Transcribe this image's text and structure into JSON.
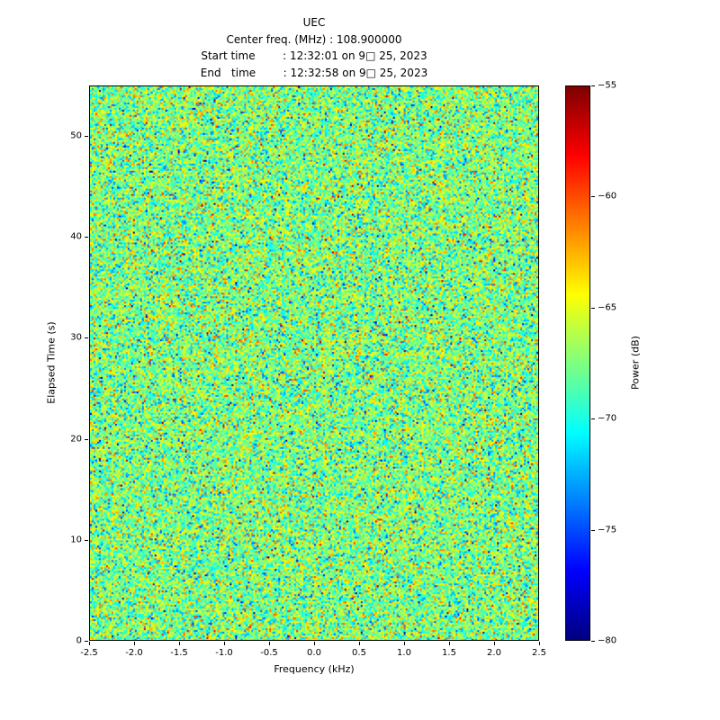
{
  "header": {
    "title": "UEC",
    "center_freq_line": "Center freq. (MHz) : 108.900000",
    "start_time_line": "Start time        : 12:32:01 on 9□ 25, 2023",
    "end_time_line": "End   time        : 12:32:58 on 9□ 25, 2023"
  },
  "chart_data": {
    "type": "heatmap",
    "title": "UEC",
    "subtitle_lines": [
      "Center freq. (MHz) : 108.900000",
      "Start time        : 12:32:01 on 9□ 25, 2023",
      "End   time        : 12:32:58 on 9□ 25, 2023"
    ],
    "xlabel": "Frequency (kHz)",
    "ylabel": "Elapsed Time (s)",
    "xlim": [
      -2.5,
      2.5
    ],
    "ylim": [
      0,
      55
    ],
    "xtick_values": [
      -2.5,
      -2.0,
      -1.5,
      -1.0,
      -0.5,
      0.0,
      0.5,
      1.0,
      1.5,
      2.0,
      2.5
    ],
    "xtick_labels": [
      "-2.5",
      "-2.0",
      "-1.5",
      "-1.0",
      "-0.5",
      "0.0",
      "0.5",
      "1.0",
      "1.5",
      "2.0",
      "2.5"
    ],
    "ytick_values": [
      0,
      10,
      20,
      30,
      40,
      50
    ],
    "ytick_labels": [
      "0",
      "10",
      "20",
      "30",
      "40",
      "50"
    ],
    "grid": false,
    "legend": false,
    "colorbar": {
      "label": "Power (dB)",
      "vmin": -80,
      "vmax": -55,
      "tick_values": [
        -55,
        -60,
        -65,
        -70,
        -75,
        -80
      ],
      "tick_labels": [
        "−55",
        "−60",
        "−65",
        "−70",
        "−75",
        "−80"
      ],
      "colormap": "jet"
    },
    "noise": {
      "description": "random noise field, no visible signal structure",
      "mean_db": -67.5,
      "std_db": 3.0,
      "outlier_fraction": 0.02,
      "seed": 42
    }
  }
}
